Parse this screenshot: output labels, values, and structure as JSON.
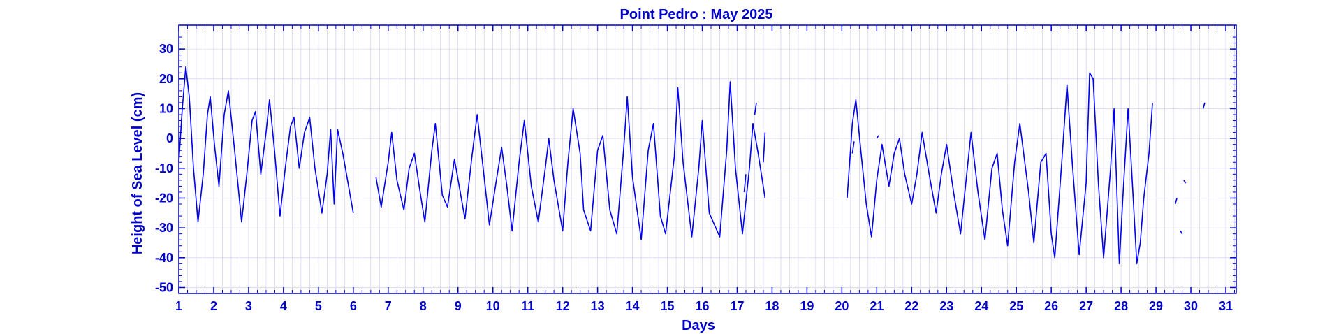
{
  "colors": {
    "line": "#0000ee",
    "text": "#0000cc",
    "grid": "#c8c8f0",
    "frame": "#0000cc"
  },
  "chart_data": {
    "type": "line",
    "title": "Point Pedro : May 2025",
    "xlabel": "Days",
    "ylabel": "Height of Sea Level (cm)",
    "xlim": [
      1,
      31.3
    ],
    "ylim": [
      -52,
      38
    ],
    "xticks": [
      1,
      2,
      3,
      4,
      5,
      6,
      7,
      8,
      9,
      10,
      11,
      12,
      13,
      14,
      15,
      16,
      17,
      18,
      19,
      20,
      21,
      22,
      23,
      24,
      25,
      26,
      27,
      28,
      29,
      30,
      31
    ],
    "yticks": [
      30,
      20,
      10,
      0,
      -10,
      -20,
      -30,
      -40,
      -50
    ],
    "grid": true,
    "series": [
      {
        "segments": [
          [
            [
              1.0,
              -8
            ],
            [
              1.1,
              10
            ],
            [
              1.2,
              24
            ],
            [
              1.3,
              14
            ],
            [
              1.42,
              -10
            ],
            [
              1.55,
              -28
            ],
            [
              1.7,
              -12
            ],
            [
              1.82,
              8
            ],
            [
              1.9,
              14
            ],
            [
              2.02,
              -2
            ],
            [
              2.15,
              -16
            ],
            [
              2.3,
              8
            ],
            [
              2.42,
              16
            ],
            [
              2.6,
              -4
            ],
            [
              2.8,
              -28
            ],
            [
              2.95,
              -12
            ],
            [
              3.1,
              6
            ],
            [
              3.2,
              9
            ],
            [
              3.35,
              -12
            ],
            [
              3.5,
              2
            ],
            [
              3.6,
              13
            ],
            [
              3.75,
              -5
            ],
            [
              3.9,
              -26
            ],
            [
              4.05,
              -10
            ],
            [
              4.2,
              4
            ],
            [
              4.3,
              7
            ],
            [
              4.45,
              -10
            ],
            [
              4.6,
              2
            ],
            [
              4.75,
              7
            ],
            [
              4.9,
              -10
            ],
            [
              5.1,
              -25
            ],
            [
              5.25,
              -12
            ],
            [
              5.35,
              3
            ],
            [
              5.45,
              -22
            ],
            [
              5.55,
              3
            ],
            [
              5.7,
              -5
            ],
            [
              5.85,
              -15
            ],
            [
              6.0,
              -25
            ]
          ],
          [
            [
              6.65,
              -13
            ],
            [
              6.8,
              -23
            ],
            [
              7.0,
              -8
            ],
            [
              7.1,
              2
            ],
            [
              7.25,
              -14
            ],
            [
              7.45,
              -24
            ],
            [
              7.6,
              -10
            ],
            [
              7.75,
              -5
            ],
            [
              7.9,
              -17
            ],
            [
              8.05,
              -28
            ],
            [
              8.25,
              -4
            ],
            [
              8.35,
              5
            ],
            [
              8.55,
              -19
            ],
            [
              8.7,
              -23
            ],
            [
              8.9,
              -7
            ],
            [
              9.05,
              -17
            ],
            [
              9.2,
              -27
            ],
            [
              9.4,
              -6
            ],
            [
              9.55,
              8
            ],
            [
              9.75,
              -13
            ],
            [
              9.9,
              -29
            ],
            [
              10.1,
              -14
            ],
            [
              10.25,
              -3
            ],
            [
              10.4,
              -16
            ],
            [
              10.55,
              -31
            ],
            [
              10.75,
              -8
            ],
            [
              10.9,
              6
            ],
            [
              11.1,
              -16
            ],
            [
              11.3,
              -28
            ],
            [
              11.5,
              -10
            ],
            [
              11.6,
              0
            ],
            [
              11.75,
              -14
            ],
            [
              12.0,
              -31
            ],
            [
              12.15,
              -8
            ],
            [
              12.3,
              10
            ],
            [
              12.5,
              -5
            ],
            [
              12.6,
              -24
            ],
            [
              12.8,
              -31
            ],
            [
              13.0,
              -4
            ],
            [
              13.15,
              1
            ],
            [
              13.35,
              -24
            ],
            [
              13.55,
              -32
            ],
            [
              13.75,
              -3
            ],
            [
              13.85,
              14
            ],
            [
              14.0,
              -13
            ],
            [
              14.25,
              -34
            ],
            [
              14.45,
              -4
            ],
            [
              14.6,
              5
            ],
            [
              14.8,
              -26
            ],
            [
              14.95,
              -32
            ],
            [
              15.2,
              -6
            ],
            [
              15.3,
              17
            ],
            [
              15.45,
              -8
            ],
            [
              15.7,
              -33
            ],
            [
              15.9,
              -10
            ],
            [
              16.0,
              6
            ],
            [
              16.2,
              -25
            ],
            [
              16.5,
              -33
            ],
            [
              16.7,
              -4
            ],
            [
              16.8,
              19
            ],
            [
              16.95,
              -10
            ],
            [
              17.15,
              -32
            ],
            [
              17.35,
              -10
            ],
            [
              17.45,
              5
            ],
            [
              17.6,
              -5
            ],
            [
              17.8,
              -20
            ]
          ],
          [
            [
              20.15,
              -20
            ],
            [
              20.3,
              5
            ],
            [
              20.4,
              13
            ],
            [
              20.55,
              -5
            ],
            [
              20.7,
              -22
            ],
            [
              20.85,
              -33
            ],
            [
              21.0,
              -14
            ],
            [
              21.15,
              -2
            ],
            [
              21.35,
              -16
            ],
            [
              21.5,
              -5
            ],
            [
              21.65,
              0
            ],
            [
              21.8,
              -12
            ],
            [
              22.0,
              -22
            ],
            [
              22.15,
              -12
            ],
            [
              22.3,
              2
            ],
            [
              22.5,
              -12
            ],
            [
              22.7,
              -25
            ],
            [
              22.85,
              -12
            ],
            [
              23.0,
              -2
            ],
            [
              23.2,
              -18
            ],
            [
              23.4,
              -32
            ],
            [
              23.55,
              -15
            ],
            [
              23.7,
              2
            ],
            [
              23.9,
              -18
            ],
            [
              24.1,
              -34
            ],
            [
              24.3,
              -10
            ],
            [
              24.45,
              -5
            ],
            [
              24.6,
              -24
            ],
            [
              24.75,
              -36
            ],
            [
              24.95,
              -8
            ],
            [
              25.1,
              5
            ],
            [
              25.35,
              -18
            ],
            [
              25.5,
              -35
            ],
            [
              25.7,
              -8
            ],
            [
              25.85,
              -5
            ],
            [
              26.0,
              -32
            ],
            [
              26.1,
              -40
            ],
            [
              26.3,
              -8
            ],
            [
              26.45,
              18
            ],
            [
              26.6,
              -8
            ],
            [
              26.8,
              -39
            ],
            [
              27.0,
              -15
            ],
            [
              27.1,
              22
            ],
            [
              27.2,
              20
            ],
            [
              27.35,
              -15
            ],
            [
              27.5,
              -40
            ],
            [
              27.7,
              -10
            ],
            [
              27.8,
              10
            ],
            [
              27.95,
              -42
            ],
            [
              28.05,
              -20
            ],
            [
              28.2,
              10
            ],
            [
              28.3,
              -10
            ],
            [
              28.45,
              -42
            ],
            [
              28.55,
              -35
            ],
            [
              28.65,
              -20
            ],
            [
              28.8,
              -5
            ],
            [
              28.9,
              12
            ]
          ]
        ]
      }
    ],
    "fragments": [
      [
        [
          17.2,
          -18
        ],
        [
          17.25,
          -12
        ]
      ],
      [
        [
          17.5,
          8
        ],
        [
          17.55,
          12
        ]
      ],
      [
        [
          17.75,
          -8
        ],
        [
          17.8,
          2
        ]
      ],
      [
        [
          20.3,
          -5
        ],
        [
          20.35,
          -1
        ]
      ],
      [
        [
          21.0,
          0
        ],
        [
          21.05,
          1
        ]
      ],
      [
        [
          29.55,
          -22
        ],
        [
          29.6,
          -20
        ]
      ],
      [
        [
          29.7,
          -31
        ],
        [
          29.75,
          -32
        ]
      ],
      [
        [
          29.8,
          -14
        ],
        [
          29.85,
          -15
        ]
      ],
      [
        [
          30.35,
          10
        ],
        [
          30.4,
          12
        ]
      ]
    ]
  }
}
